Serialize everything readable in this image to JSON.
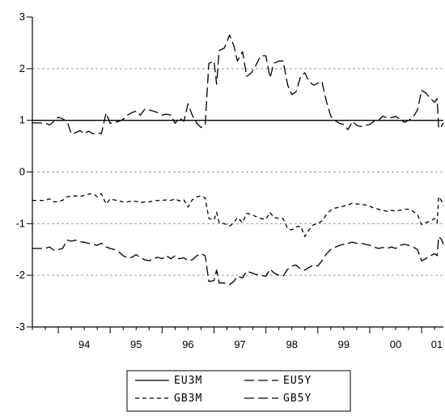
{
  "chart_data": {
    "type": "line",
    "title": "",
    "xlabel": "",
    "ylabel": "",
    "xlim": [
      1993.5,
      2001.42
    ],
    "ylim": [
      -3,
      3
    ],
    "y_ticks": [
      3,
      2,
      1,
      0,
      -1,
      -2,
      -3
    ],
    "y_tick_labels": [
      "3",
      "2",
      "1",
      "0",
      "-1",
      "-2",
      "-3"
    ],
    "x_ticks": [
      1994,
      1995,
      1996,
      1997,
      1998,
      1999,
      2000,
      2001
    ],
    "x_tick_labels": [
      "94",
      "95",
      "96",
      "97",
      "98",
      "99",
      "00",
      "01"
    ],
    "grid": "horizontal dashed at -2, -1, 0 and 2; solid reference line at 1",
    "legend_position": "bottom-center",
    "series": [
      {
        "name": "EU3M",
        "line_style": "solid",
        "points": [
          [
            1993.5,
            1.0
          ],
          [
            2001.42,
            1.0
          ]
        ]
      },
      {
        "name": "EU5Y",
        "line_style": "long-dash",
        "points": [
          [
            1993.5,
            0.95
          ],
          [
            1993.58,
            0.95
          ],
          [
            1993.67,
            0.95
          ],
          [
            1993.75,
            0.95
          ],
          [
            1993.83,
            0.91
          ],
          [
            1993.92,
            0.98
          ],
          [
            1994.0,
            1.06
          ],
          [
            1994.08,
            1.03
          ],
          [
            1994.17,
            0.98
          ],
          [
            1994.25,
            0.74
          ],
          [
            1994.33,
            0.76
          ],
          [
            1994.42,
            0.8
          ],
          [
            1994.5,
            0.74
          ],
          [
            1994.58,
            0.79
          ],
          [
            1994.67,
            0.74
          ],
          [
            1994.75,
            0.76
          ],
          [
            1994.83,
            0.74
          ],
          [
            1994.92,
            1.14
          ],
          [
            1995.0,
            0.94
          ],
          [
            1995.08,
            0.96
          ],
          [
            1995.17,
            0.98
          ],
          [
            1995.25,
            1.02
          ],
          [
            1995.33,
            1.1
          ],
          [
            1995.42,
            1.15
          ],
          [
            1995.5,
            1.18
          ],
          [
            1995.58,
            1.1
          ],
          [
            1995.67,
            1.22
          ],
          [
            1995.75,
            1.2
          ],
          [
            1995.83,
            1.18
          ],
          [
            1995.92,
            1.15
          ],
          [
            1996.0,
            1.1
          ],
          [
            1996.08,
            1.12
          ],
          [
            1996.17,
            1.1
          ],
          [
            1996.25,
            0.94
          ],
          [
            1996.33,
            1.05
          ],
          [
            1996.42,
            0.98
          ],
          [
            1996.5,
            1.32
          ],
          [
            1996.58,
            1.1
          ],
          [
            1996.67,
            0.94
          ],
          [
            1996.75,
            0.86
          ],
          [
            1996.83,
            0.91
          ],
          [
            1996.9,
            2.1
          ],
          [
            1997.0,
            2.15
          ],
          [
            1997.05,
            1.7
          ],
          [
            1997.1,
            2.35
          ],
          [
            1997.2,
            2.4
          ],
          [
            1997.3,
            2.65
          ],
          [
            1997.38,
            2.45
          ],
          [
            1997.45,
            2.15
          ],
          [
            1997.55,
            2.33
          ],
          [
            1997.63,
            1.85
          ],
          [
            1997.72,
            1.92
          ],
          [
            1997.8,
            2.05
          ],
          [
            1997.9,
            2.25
          ],
          [
            1998.0,
            2.25
          ],
          [
            1998.08,
            1.82
          ],
          [
            1998.15,
            2.1
          ],
          [
            1998.25,
            2.15
          ],
          [
            1998.33,
            2.15
          ],
          [
            1998.42,
            1.68
          ],
          [
            1998.5,
            1.5
          ],
          [
            1998.58,
            1.55
          ],
          [
            1998.67,
            1.85
          ],
          [
            1998.75,
            1.92
          ],
          [
            1998.83,
            1.75
          ],
          [
            1998.92,
            1.68
          ],
          [
            1999.0,
            1.72
          ],
          [
            1999.08,
            1.75
          ],
          [
            1999.17,
            1.35
          ],
          [
            1999.25,
            1.08
          ],
          [
            1999.33,
            1.0
          ],
          [
            1999.42,
            0.94
          ],
          [
            1999.5,
            0.92
          ],
          [
            1999.58,
            0.82
          ],
          [
            1999.67,
            0.98
          ],
          [
            1999.75,
            0.9
          ],
          [
            1999.83,
            0.88
          ],
          [
            1999.92,
            0.9
          ],
          [
            2000.0,
            0.92
          ],
          [
            2000.08,
            0.98
          ],
          [
            2000.17,
            1.0
          ],
          [
            2000.25,
            1.08
          ],
          [
            2000.33,
            1.05
          ],
          [
            2000.42,
            1.05
          ],
          [
            2000.5,
            1.08
          ],
          [
            2000.58,
            1.02
          ],
          [
            2000.67,
            0.96
          ],
          [
            2000.75,
            1.0
          ],
          [
            2000.83,
            1.05
          ],
          [
            2000.92,
            1.2
          ],
          [
            2001.0,
            1.58
          ],
          [
            2001.08,
            1.53
          ],
          [
            2001.17,
            1.42
          ],
          [
            2001.25,
            1.35
          ],
          [
            2001.3,
            1.42
          ],
          [
            2001.33,
            0.84
          ],
          [
            2001.38,
            0.88
          ],
          [
            2001.42,
            0.95
          ]
        ]
      },
      {
        "name": "GB3M",
        "line_style": "short-dash",
        "points": [
          [
            1993.5,
            -0.55
          ],
          [
            1993.58,
            -0.55
          ],
          [
            1993.67,
            -0.55
          ],
          [
            1993.75,
            -0.55
          ],
          [
            1993.83,
            -0.52
          ],
          [
            1993.92,
            -0.58
          ],
          [
            1994.0,
            -0.57
          ],
          [
            1994.08,
            -0.55
          ],
          [
            1994.17,
            -0.48
          ],
          [
            1994.25,
            -0.47
          ],
          [
            1994.33,
            -0.46
          ],
          [
            1994.42,
            -0.48
          ],
          [
            1994.5,
            -0.45
          ],
          [
            1994.58,
            -0.43
          ],
          [
            1994.67,
            -0.42
          ],
          [
            1994.75,
            -0.48
          ],
          [
            1994.83,
            -0.42
          ],
          [
            1994.92,
            -0.62
          ],
          [
            1995.0,
            -0.52
          ],
          [
            1995.08,
            -0.54
          ],
          [
            1995.17,
            -0.56
          ],
          [
            1995.25,
            -0.58
          ],
          [
            1995.33,
            -0.58
          ],
          [
            1995.42,
            -0.56
          ],
          [
            1995.5,
            -0.57
          ],
          [
            1995.58,
            -0.59
          ],
          [
            1995.67,
            -0.58
          ],
          [
            1995.75,
            -0.58
          ],
          [
            1995.83,
            -0.56
          ],
          [
            1995.92,
            -0.55
          ],
          [
            1996.0,
            -0.55
          ],
          [
            1996.08,
            -0.54
          ],
          [
            1996.17,
            -0.55
          ],
          [
            1996.25,
            -0.52
          ],
          [
            1996.33,
            -0.56
          ],
          [
            1996.42,
            -0.54
          ],
          [
            1996.5,
            -0.68
          ],
          [
            1996.58,
            -0.54
          ],
          [
            1996.67,
            -0.48
          ],
          [
            1996.75,
            -0.46
          ],
          [
            1996.83,
            -0.5
          ],
          [
            1996.9,
            -0.9
          ],
          [
            1997.0,
            -0.93
          ],
          [
            1997.05,
            -0.78
          ],
          [
            1997.1,
            -0.98
          ],
          [
            1997.2,
            -1.0
          ],
          [
            1997.3,
            -1.05
          ],
          [
            1997.38,
            -0.98
          ],
          [
            1997.45,
            -0.88
          ],
          [
            1997.55,
            -0.98
          ],
          [
            1997.63,
            -0.8
          ],
          [
            1997.72,
            -0.82
          ],
          [
            1997.8,
            -0.86
          ],
          [
            1997.9,
            -0.9
          ],
          [
            1998.0,
            -0.92
          ],
          [
            1998.08,
            -0.78
          ],
          [
            1998.15,
            -0.88
          ],
          [
            1998.25,
            -0.9
          ],
          [
            1998.33,
            -0.9
          ],
          [
            1998.42,
            -1.1
          ],
          [
            1998.5,
            -1.12
          ],
          [
            1998.58,
            -1.06
          ],
          [
            1998.67,
            -1.05
          ],
          [
            1998.75,
            -1.25
          ],
          [
            1998.83,
            -1.12
          ],
          [
            1998.92,
            -1.02
          ],
          [
            1999.0,
            -1.0
          ],
          [
            1999.08,
            -0.95
          ],
          [
            1999.17,
            -0.82
          ],
          [
            1999.25,
            -0.74
          ],
          [
            1999.33,
            -0.7
          ],
          [
            1999.42,
            -0.68
          ],
          [
            1999.5,
            -0.66
          ],
          [
            1999.58,
            -0.64
          ],
          [
            1999.67,
            -0.6
          ],
          [
            1999.75,
            -0.62
          ],
          [
            1999.83,
            -0.62
          ],
          [
            1999.92,
            -0.64
          ],
          [
            2000.0,
            -0.66
          ],
          [
            2000.08,
            -0.7
          ],
          [
            2000.17,
            -0.72
          ],
          [
            2000.25,
            -0.74
          ],
          [
            2000.33,
            -0.76
          ],
          [
            2000.42,
            -0.74
          ],
          [
            2000.5,
            -0.76
          ],
          [
            2000.58,
            -0.74
          ],
          [
            2000.67,
            -0.72
          ],
          [
            2000.75,
            -0.72
          ],
          [
            2000.83,
            -0.76
          ],
          [
            2000.92,
            -0.82
          ],
          [
            2001.0,
            -1.02
          ],
          [
            2001.08,
            -0.98
          ],
          [
            2001.17,
            -0.95
          ],
          [
            2001.25,
            -0.9
          ],
          [
            2001.3,
            -0.98
          ],
          [
            2001.33,
            -0.48
          ],
          [
            2001.38,
            -0.55
          ],
          [
            2001.42,
            -0.65
          ]
        ]
      },
      {
        "name": "GB5Y",
        "line_style": "long-dash",
        "points": [
          [
            1993.5,
            -1.48
          ],
          [
            1993.58,
            -1.48
          ],
          [
            1993.67,
            -1.48
          ],
          [
            1993.75,
            -1.48
          ],
          [
            1993.83,
            -1.45
          ],
          [
            1993.92,
            -1.52
          ],
          [
            1994.0,
            -1.5
          ],
          [
            1994.08,
            -1.48
          ],
          [
            1994.17,
            -1.32
          ],
          [
            1994.25,
            -1.34
          ],
          [
            1994.33,
            -1.32
          ],
          [
            1994.42,
            -1.35
          ],
          [
            1994.5,
            -1.36
          ],
          [
            1994.58,
            -1.38
          ],
          [
            1994.67,
            -1.4
          ],
          [
            1994.75,
            -1.42
          ],
          [
            1994.83,
            -1.38
          ],
          [
            1994.92,
            -1.45
          ],
          [
            1995.0,
            -1.48
          ],
          [
            1995.08,
            -1.5
          ],
          [
            1995.17,
            -1.55
          ],
          [
            1995.25,
            -1.62
          ],
          [
            1995.33,
            -1.66
          ],
          [
            1995.42,
            -1.65
          ],
          [
            1995.5,
            -1.6
          ],
          [
            1995.58,
            -1.66
          ],
          [
            1995.67,
            -1.7
          ],
          [
            1995.75,
            -1.72
          ],
          [
            1995.83,
            -1.68
          ],
          [
            1995.92,
            -1.65
          ],
          [
            1996.0,
            -1.68
          ],
          [
            1996.08,
            -1.62
          ],
          [
            1996.17,
            -1.68
          ],
          [
            1996.25,
            -1.62
          ],
          [
            1996.33,
            -1.68
          ],
          [
            1996.42,
            -1.66
          ],
          [
            1996.5,
            -1.72
          ],
          [
            1996.58,
            -1.7
          ],
          [
            1996.67,
            -1.62
          ],
          [
            1996.75,
            -1.58
          ],
          [
            1996.83,
            -1.62
          ],
          [
            1996.9,
            -2.12
          ],
          [
            1997.0,
            -2.1
          ],
          [
            1997.05,
            -1.9
          ],
          [
            1997.1,
            -2.15
          ],
          [
            1997.2,
            -2.15
          ],
          [
            1997.3,
            -2.18
          ],
          [
            1997.38,
            -2.12
          ],
          [
            1997.45,
            -2.02
          ],
          [
            1997.55,
            -2.05
          ],
          [
            1997.63,
            -1.92
          ],
          [
            1997.72,
            -1.95
          ],
          [
            1997.8,
            -1.98
          ],
          [
            1997.9,
            -2.0
          ],
          [
            1998.0,
            -2.02
          ],
          [
            1998.08,
            -1.88
          ],
          [
            1998.15,
            -1.95
          ],
          [
            1998.25,
            -2.0
          ],
          [
            1998.33,
            -2.02
          ],
          [
            1998.42,
            -1.88
          ],
          [
            1998.5,
            -1.82
          ],
          [
            1998.58,
            -1.8
          ],
          [
            1998.67,
            -1.88
          ],
          [
            1998.75,
            -1.9
          ],
          [
            1998.83,
            -1.85
          ],
          [
            1998.92,
            -1.8
          ],
          [
            1999.0,
            -1.82
          ],
          [
            1999.08,
            -1.72
          ],
          [
            1999.17,
            -1.58
          ],
          [
            1999.25,
            -1.5
          ],
          [
            1999.33,
            -1.46
          ],
          [
            1999.42,
            -1.42
          ],
          [
            1999.5,
            -1.4
          ],
          [
            1999.58,
            -1.38
          ],
          [
            1999.67,
            -1.36
          ],
          [
            1999.75,
            -1.38
          ],
          [
            1999.83,
            -1.38
          ],
          [
            1999.92,
            -1.4
          ],
          [
            2000.0,
            -1.42
          ],
          [
            2000.08,
            -1.45
          ],
          [
            2000.17,
            -1.48
          ],
          [
            2000.25,
            -1.46
          ],
          [
            2000.33,
            -1.48
          ],
          [
            2000.42,
            -1.45
          ],
          [
            2000.5,
            -1.48
          ],
          [
            2000.58,
            -1.42
          ],
          [
            2000.67,
            -1.4
          ],
          [
            2000.75,
            -1.42
          ],
          [
            2000.83,
            -1.45
          ],
          [
            2000.92,
            -1.5
          ],
          [
            2001.0,
            -1.72
          ],
          [
            2001.08,
            -1.68
          ],
          [
            2001.17,
            -1.62
          ],
          [
            2001.25,
            -1.58
          ],
          [
            2001.3,
            -1.62
          ],
          [
            2001.33,
            -1.25
          ],
          [
            2001.38,
            -1.3
          ],
          [
            2001.42,
            -1.4
          ]
        ]
      }
    ]
  }
}
